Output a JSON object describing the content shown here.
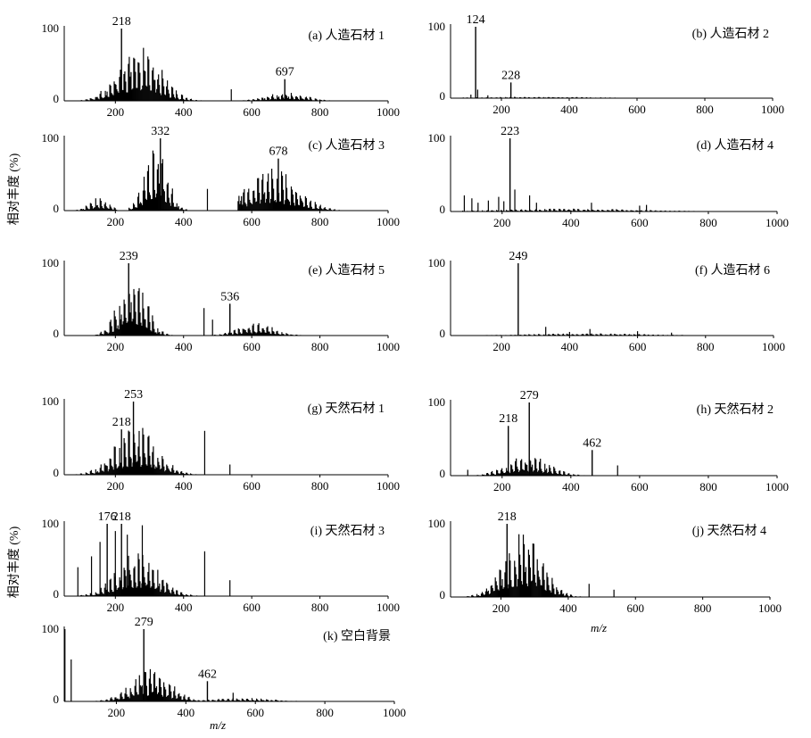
{
  "figure": {
    "ylabel": "相对丰度 (%)",
    "xlabel": "m/z"
  },
  "chart_data": [
    {
      "id": "a",
      "type": "bar",
      "title": "(a) 人造石材 1",
      "xlim": [
        50,
        1000
      ],
      "ylim": [
        0,
        100
      ],
      "xticks": [
        "200",
        "400",
        "600",
        "800",
        "1000"
      ],
      "ytop": "100",
      "ybottom": "0",
      "peaks": [
        {
          "label": "218",
          "x": 218,
          "y": 100
        },
        {
          "label": "697",
          "x": 697,
          "y": 30
        }
      ],
      "envelopes": [
        {
          "lo": 90,
          "hi": 540,
          "center": 270,
          "width": 85,
          "amp": 80
        },
        {
          "lo": 560,
          "hi": 860,
          "center": 700,
          "width": 80,
          "amp": 12
        }
      ],
      "spikes": [
        {
          "x": 540,
          "y": 16
        }
      ]
    },
    {
      "id": "b",
      "type": "bar",
      "title": "(b) 人造石材 2",
      "xlim": [
        50,
        1000
      ],
      "ylim": [
        0,
        100
      ],
      "xticks": [
        "200",
        "400",
        "600",
        "800",
        "1000"
      ],
      "ytop": "100",
      "ybottom": "0",
      "peaks": [
        {
          "label": "124",
          "x": 124,
          "y": 100
        },
        {
          "label": "228",
          "x": 228,
          "y": 22
        }
      ],
      "envelopes": [
        {
          "lo": 80,
          "hi": 700,
          "center": 300,
          "width": 250,
          "amp": 2
        }
      ],
      "spikes": [
        {
          "x": 130,
          "y": 12
        },
        {
          "x": 110,
          "y": 5
        },
        {
          "x": 160,
          "y": 4
        }
      ]
    },
    {
      "id": "c",
      "type": "bar",
      "title": "(c) 人造石材 3",
      "xlim": [
        50,
        1000
      ],
      "ylim": [
        0,
        100
      ],
      "xticks": [
        "200",
        "400",
        "600",
        "800",
        "1000"
      ],
      "ytop": "100",
      "ybottom": "0",
      "peaks": [
        {
          "label": "332",
          "x": 332,
          "y": 100
        },
        {
          "label": "678",
          "x": 678,
          "y": 72
        }
      ],
      "envelopes": [
        {
          "lo": 80,
          "hi": 210,
          "center": 150,
          "width": 40,
          "amp": 18
        },
        {
          "lo": 240,
          "hi": 430,
          "center": 320,
          "width": 45,
          "amp": 95
        },
        {
          "lo": 560,
          "hi": 1000,
          "center": 660,
          "width": 100,
          "amp": 60
        }
      ],
      "spikes": [
        {
          "x": 470,
          "y": 30
        },
        {
          "x": 570,
          "y": 20
        }
      ]
    },
    {
      "id": "d",
      "type": "bar",
      "title": "(d) 人造石材 4",
      "xlim": [
        50,
        1000
      ],
      "ylim": [
        0,
        100
      ],
      "xticks": [
        "200",
        "400",
        "600",
        "800",
        "1000"
      ],
      "ytop": "100",
      "ybottom": "0",
      "peaks": [
        {
          "label": "223",
          "x": 223,
          "y": 100
        }
      ],
      "envelopes": [
        {
          "lo": 80,
          "hi": 950,
          "center": 400,
          "width": 280,
          "amp": 4
        }
      ],
      "spikes": [
        {
          "x": 90,
          "y": 22
        },
        {
          "x": 112,
          "y": 18
        },
        {
          "x": 130,
          "y": 12
        },
        {
          "x": 160,
          "y": 15
        },
        {
          "x": 190,
          "y": 20
        },
        {
          "x": 205,
          "y": 14
        },
        {
          "x": 237,
          "y": 30
        },
        {
          "x": 280,
          "y": 22
        },
        {
          "x": 300,
          "y": 12
        },
        {
          "x": 460,
          "y": 12
        },
        {
          "x": 600,
          "y": 8
        },
        {
          "x": 620,
          "y": 9
        }
      ]
    },
    {
      "id": "e",
      "type": "bar",
      "title": "(e) 人造石材 5",
      "xlim": [
        50,
        1000
      ],
      "ylim": [
        0,
        100
      ],
      "xticks": [
        "200",
        "400",
        "600",
        "800",
        "1000"
      ],
      "ytop": "100",
      "ybottom": "0",
      "peaks": [
        {
          "label": "239",
          "x": 239,
          "y": 100
        },
        {
          "label": "536",
          "x": 536,
          "y": 44
        }
      ],
      "envelopes": [
        {
          "lo": 80,
          "hi": 400,
          "center": 250,
          "width": 55,
          "amp": 88
        },
        {
          "lo": 470,
          "hi": 790,
          "center": 610,
          "width": 75,
          "amp": 18
        }
      ],
      "spikes": [
        {
          "x": 460,
          "y": 38
        },
        {
          "x": 485,
          "y": 22
        }
      ]
    },
    {
      "id": "f",
      "type": "bar",
      "title": "(f) 人造石材 6",
      "xlim": [
        50,
        1000
      ],
      "ylim": [
        0,
        100
      ],
      "xticks": [
        "200",
        "400",
        "600",
        "800",
        "1000"
      ],
      "ytop": "100",
      "ybottom": "0",
      "peaks": [
        {
          "label": "249",
          "x": 249,
          "y": 100
        }
      ],
      "envelopes": [
        {
          "lo": 80,
          "hi": 900,
          "center": 450,
          "width": 250,
          "amp": 3
        }
      ],
      "spikes": [
        {
          "x": 330,
          "y": 12
        },
        {
          "x": 460,
          "y": 9
        },
        {
          "x": 400,
          "y": 5
        },
        {
          "x": 600,
          "y": 6
        },
        {
          "x": 700,
          "y": 4
        }
      ]
    },
    {
      "id": "g",
      "type": "bar",
      "title": "(g) 天然石材 1",
      "xlim": [
        50,
        1000
      ],
      "ylim": [
        0,
        100
      ],
      "xticks": [
        "200",
        "400",
        "600",
        "800",
        "1000"
      ],
      "ytop": "100",
      "ybottom": "0",
      "peaks": [
        {
          "label": "218",
          "x": 218,
          "y": 62
        },
        {
          "label": "253",
          "x": 253,
          "y": 100
        }
      ],
      "envelopes": [
        {
          "lo": 80,
          "hi": 620,
          "center": 260,
          "width": 85,
          "amp": 68
        }
      ],
      "spikes": [
        {
          "x": 462,
          "y": 60
        },
        {
          "x": 536,
          "y": 14
        }
      ]
    },
    {
      "id": "h",
      "type": "bar",
      "title": "(h) 天然石材 2",
      "xlim": [
        50,
        1000
      ],
      "ylim": [
        0,
        100
      ],
      "xticks": [
        "200",
        "400",
        "600",
        "800",
        "1000"
      ],
      "ytop": "100",
      "ybottom": "0",
      "peaks": [
        {
          "label": "218",
          "x": 218,
          "y": 68
        },
        {
          "label": "279",
          "x": 279,
          "y": 100
        },
        {
          "label": "462",
          "x": 462,
          "y": 35
        }
      ],
      "envelopes": [
        {
          "lo": 80,
          "hi": 650,
          "center": 275,
          "width": 85,
          "amp": 28
        }
      ],
      "spikes": [
        {
          "x": 536,
          "y": 14
        },
        {
          "x": 100,
          "y": 8
        }
      ]
    },
    {
      "id": "i",
      "type": "bar",
      "title": "(i) 天然石材 3",
      "xlim": [
        50,
        1000
      ],
      "ylim": [
        0,
        100
      ],
      "xticks": [
        "200",
        "400",
        "600",
        "800",
        "1000"
      ],
      "ytop": "100",
      "ybottom": "0",
      "peaks": [
        {
          "label": "176",
          "x": 176,
          "y": 100
        },
        {
          "label": "218",
          "x": 218,
          "y": 100
        }
      ],
      "envelopes": [
        {
          "lo": 80,
          "hi": 640,
          "center": 265,
          "width": 85,
          "amp": 62
        }
      ],
      "spikes": [
        {
          "x": 90,
          "y": 40
        },
        {
          "x": 130,
          "y": 55
        },
        {
          "x": 155,
          "y": 75
        },
        {
          "x": 200,
          "y": 90
        },
        {
          "x": 235,
          "y": 85
        },
        {
          "x": 279,
          "y": 98
        },
        {
          "x": 462,
          "y": 62
        },
        {
          "x": 536,
          "y": 22
        }
      ]
    },
    {
      "id": "j",
      "type": "bar",
      "title": "(j) 天然石材 4",
      "xlim": [
        50,
        1000
      ],
      "ylim": [
        0,
        100
      ],
      "xticks": [
        "200",
        "400",
        "600",
        "800",
        "1000"
      ],
      "ytop": "100",
      "ybottom": "0",
      "peaks": [
        {
          "label": "218",
          "x": 218,
          "y": 100
        }
      ],
      "envelopes": [
        {
          "lo": 100,
          "hi": 600,
          "center": 265,
          "width": 80,
          "amp": 90
        }
      ],
      "spikes": [
        {
          "x": 462,
          "y": 18
        },
        {
          "x": 536,
          "y": 10
        }
      ]
    },
    {
      "id": "k",
      "type": "bar",
      "title": "(k) 空白背景",
      "xlim": [
        50,
        1000
      ],
      "ylim": [
        0,
        100
      ],
      "xticks": [
        "200",
        "400",
        "600",
        "800",
        "1000"
      ],
      "ytop": "100",
      "ybottom": "0",
      "peaks": [
        {
          "label": "279",
          "x": 279,
          "y": 100
        },
        {
          "label": "462",
          "x": 462,
          "y": 28
        }
      ],
      "envelopes": [
        {
          "lo": 100,
          "hi": 650,
          "center": 300,
          "width": 80,
          "amp": 45
        },
        {
          "lo": 450,
          "hi": 800,
          "center": 560,
          "width": 120,
          "amp": 5
        }
      ],
      "spikes": [
        {
          "x": 52,
          "y": 100
        },
        {
          "x": 70,
          "y": 58
        },
        {
          "x": 536,
          "y": 12
        }
      ]
    }
  ]
}
